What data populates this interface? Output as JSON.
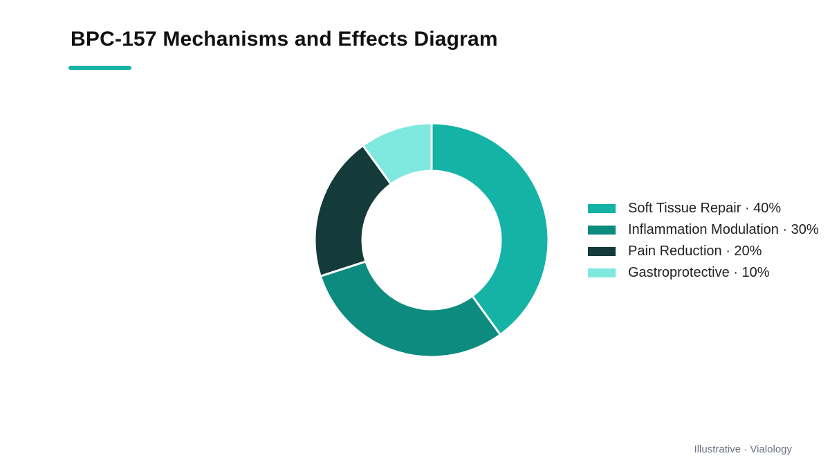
{
  "title": "BPC-157 Mechanisms and Effects Diagram",
  "accent_color": "#14b3a5",
  "footer": "Illustrative · Vialology",
  "chart_data": {
    "type": "pie",
    "variant": "donut",
    "title": "BPC-157 Mechanisms and Effects Diagram",
    "unit": "%",
    "legend_position": "right",
    "categories": [
      "Soft Tissue Repair",
      "Inflammation Modulation",
      "Pain Reduction",
      "Gastroprotective"
    ],
    "values": [
      40,
      30,
      20,
      10
    ],
    "colors": [
      "#14b3a5",
      "#0c8b7e",
      "#143b39",
      "#7fe8df"
    ],
    "legend_labels": [
      "Soft Tissue Repair · 40%",
      "Inflammation Modulation · 30%",
      "Pain Reduction · 20%",
      "Gastroprotective · 10%"
    ]
  }
}
